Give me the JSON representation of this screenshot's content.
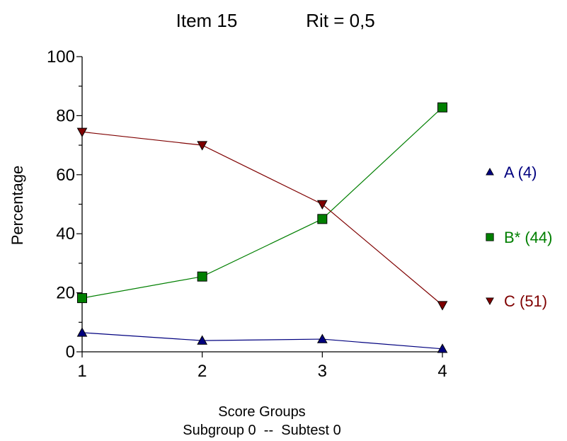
{
  "chart_data": {
    "type": "line",
    "title_item": "Item 15",
    "title_rit": "Rit = 0,5",
    "xlabel": "Score Groups",
    "subtitle": "Subgroup 0  --  Subtest 0",
    "ylabel": "Percentage",
    "x": [
      1,
      2,
      3,
      4
    ],
    "xlim": [
      1,
      4
    ],
    "ylim": [
      0,
      100
    ],
    "yticks": [
      0,
      20,
      40,
      60,
      80,
      100
    ],
    "grid": false,
    "legend_position": "right",
    "series": [
      {
        "name": "A (4)",
        "marker": "triangle-up",
        "color": "#00007f",
        "values": [
          6.5,
          3.8,
          4.3,
          1.0
        ]
      },
      {
        "name": "B* (44)",
        "marker": "square",
        "color": "#007f00",
        "values": [
          18.2,
          25.5,
          45.0,
          82.8
        ]
      },
      {
        "name": "C (51)",
        "marker": "triangle-down",
        "color": "#7f0000",
        "values": [
          74.5,
          70.0,
          50.0,
          15.8
        ]
      }
    ]
  }
}
